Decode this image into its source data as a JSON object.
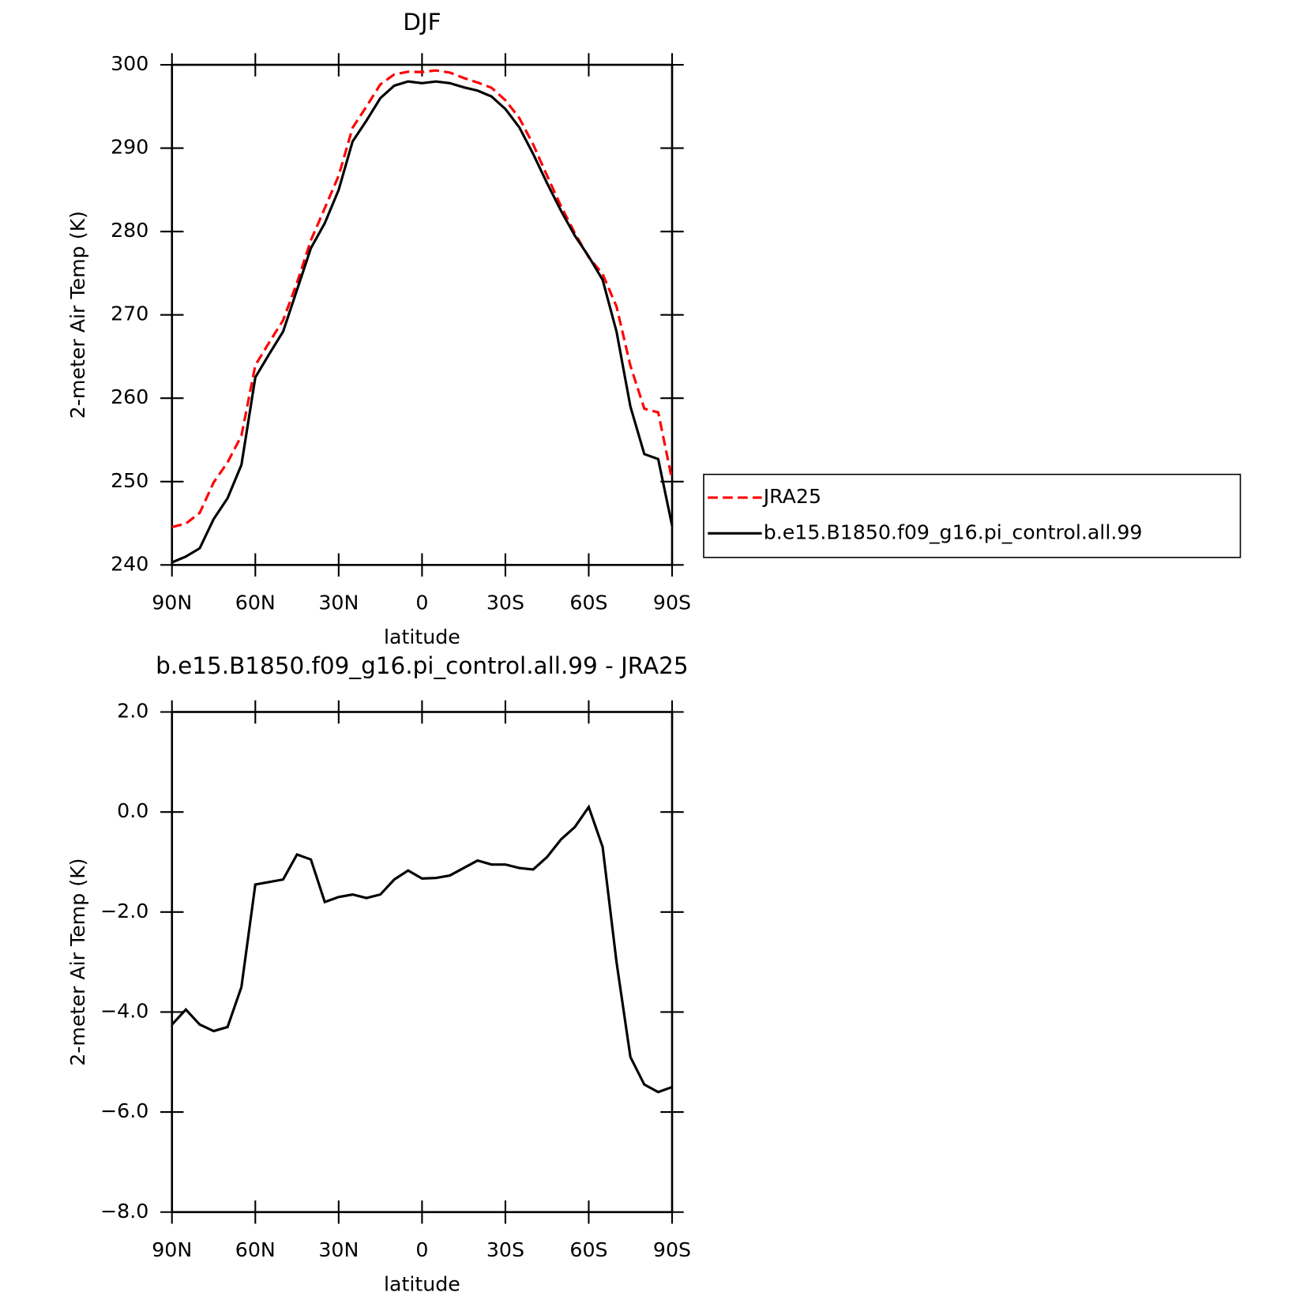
{
  "chart_data": [
    {
      "type": "line",
      "title": "DJF",
      "xlabel": "latitude",
      "ylabel": "2-meter Air Temp (K)",
      "x": [
        90,
        85,
        80,
        75,
        70,
        65,
        60,
        55,
        50,
        45,
        40,
        35,
        30,
        25,
        20,
        15,
        10,
        5,
        0,
        -5,
        -10,
        -15,
        -20,
        -25,
        -30,
        -35,
        -40,
        -45,
        -50,
        -55,
        -60,
        -65,
        -70,
        -75,
        -80,
        -85,
        -90
      ],
      "xlim": [
        90,
        -90
      ],
      "xticks": [
        {
          "value": 90,
          "label": "90N"
        },
        {
          "value": 60,
          "label": "60N"
        },
        {
          "value": 30,
          "label": "30N"
        },
        0,
        {
          "value": -30,
          "label": "30S"
        },
        {
          "value": -60,
          "label": "60S"
        },
        {
          "value": -90,
          "label": "90S"
        }
      ],
      "ylim": [
        240,
        300
      ],
      "yticks": [
        240,
        250,
        260,
        270,
        280,
        290,
        300
      ],
      "legend": "outside-right",
      "series": [
        {
          "name": "JRA25",
          "color": "#ff0000",
          "style": "dashed",
          "values": [
            244.55,
            244.95,
            246.25,
            249.9,
            252.3,
            255.5,
            263.95,
            266.7,
            269.35,
            273.85,
            278.95,
            282.8,
            286.7,
            292.45,
            295.0,
            297.65,
            298.85,
            299.17,
            299.13,
            299.32,
            299.07,
            298.42,
            297.87,
            297.25,
            295.75,
            293.62,
            290.45,
            286.7,
            283.05,
            279.8,
            276.9,
            274.9,
            271.0,
            263.9,
            258.75,
            258.3,
            250.2
          ]
        },
        {
          "name": "b.e15.B1850.f09_g16.pi_control.all.99",
          "color": "#000000",
          "style": "solid",
          "values": [
            240.3,
            241.0,
            242.0,
            245.5,
            248.0,
            252.0,
            262.5,
            265.3,
            268.0,
            273.0,
            278.0,
            281.0,
            285.0,
            290.8,
            293.3,
            296.0,
            297.5,
            298.0,
            297.8,
            298.0,
            297.8,
            297.3,
            296.9,
            296.2,
            294.7,
            292.5,
            289.3,
            285.8,
            282.5,
            279.5,
            277.0,
            274.2,
            268.0,
            259.0,
            253.3,
            252.7,
            244.7
          ]
        }
      ]
    },
    {
      "type": "line",
      "title": "b.e15.B1850.f09_g16.pi_control.all.99 - JRA25",
      "xlabel": "latitude",
      "ylabel": "2-meter Air Temp (K)",
      "x": [
        90,
        85,
        80,
        75,
        70,
        65,
        60,
        55,
        50,
        45,
        40,
        35,
        30,
        25,
        20,
        15,
        10,
        5,
        0,
        -5,
        -10,
        -15,
        -20,
        -25,
        -30,
        -35,
        -40,
        -45,
        -50,
        -55,
        -60,
        -65,
        -70,
        -75,
        -80,
        -85,
        -90
      ],
      "xlim": [
        90,
        -90
      ],
      "xticks": [
        {
          "value": 90,
          "label": "90N"
        },
        {
          "value": 60,
          "label": "60N"
        },
        {
          "value": 30,
          "label": "30N"
        },
        0,
        {
          "value": -30,
          "label": "30S"
        },
        {
          "value": -60,
          "label": "60S"
        },
        {
          "value": -90,
          "label": "90S"
        }
      ],
      "ylim": [
        -8,
        2
      ],
      "yticks": [
        {
          "value": -8,
          "label": "−8.0"
        },
        {
          "value": -6,
          "label": "−6.0"
        },
        {
          "value": -4,
          "label": "−4.0"
        },
        {
          "value": -2,
          "label": "−2.0"
        },
        {
          "value": 0,
          "label": "0.0"
        },
        {
          "value": 2,
          "label": "2.0"
        }
      ],
      "series": [
        {
          "color": "#000000",
          "style": "solid",
          "values": [
            -4.25,
            -3.95,
            -4.25,
            -4.38,
            -4.3,
            -3.5,
            -1.45,
            -1.4,
            -1.35,
            -0.85,
            -0.95,
            -1.8,
            -1.7,
            -1.65,
            -1.72,
            -1.65,
            -1.35,
            -1.17,
            -1.33,
            -1.32,
            -1.27,
            -1.12,
            -0.97,
            -1.05,
            -1.05,
            -1.12,
            -1.15,
            -0.9,
            -0.55,
            -0.3,
            0.1,
            -0.7,
            -3.0,
            -4.9,
            -5.45,
            -5.6,
            -5.5
          ]
        }
      ]
    }
  ]
}
